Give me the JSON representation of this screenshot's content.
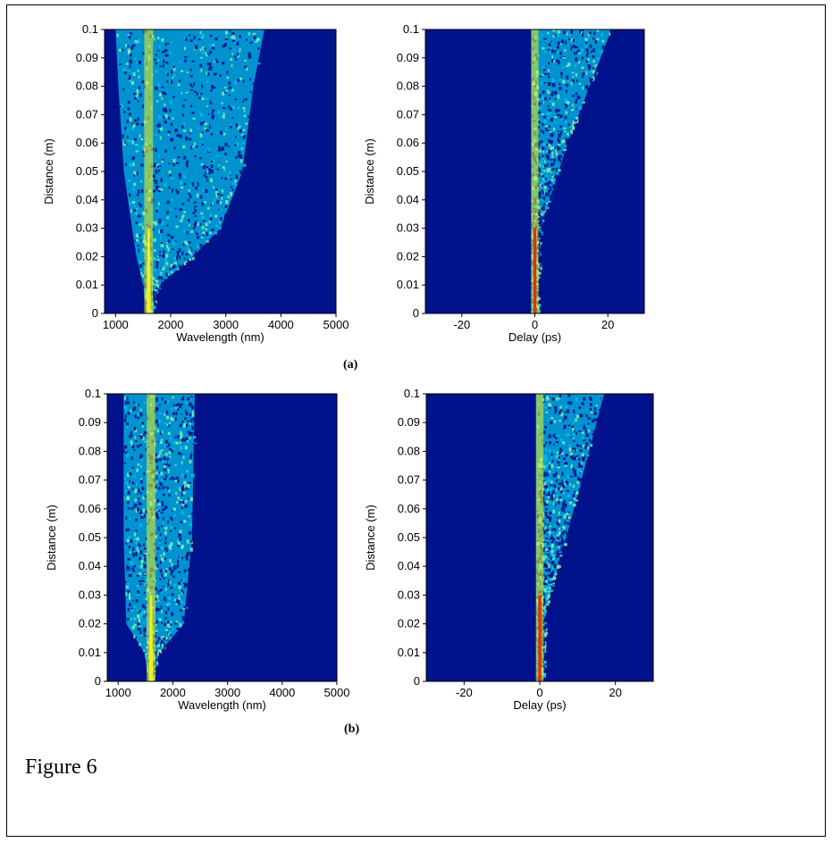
{
  "figure": {
    "caption": "Figure 6",
    "row_labels": [
      "(a)",
      "(b)"
    ]
  },
  "colors": {
    "background": "#00128c",
    "low": "#00bfe6",
    "mid": "#7af0b4",
    "high": "#f0f020",
    "peak": "#e03010"
  },
  "chart_data": [
    {
      "type": "heatmap",
      "row": "(a)",
      "xlabel": "Wavelength (nm)",
      "ylabel": "Distance (m)",
      "xlim": [
        800,
        5000
      ],
      "ylim": [
        0,
        0.1
      ],
      "xticks": [
        1000,
        2000,
        3000,
        4000,
        5000
      ],
      "yticks": [
        0,
        0.01,
        0.02,
        0.03,
        0.04,
        0.05,
        0.06,
        0.07,
        0.08,
        0.09,
        0.1
      ],
      "spectral_extent": [
        {
          "distance": 0.0,
          "min": 1560,
          "max": 1640
        },
        {
          "distance": 0.01,
          "min": 1500,
          "max": 1800
        },
        {
          "distance": 0.02,
          "min": 1380,
          "max": 2400
        },
        {
          "distance": 0.03,
          "min": 1300,
          "max": 2900
        },
        {
          "distance": 0.05,
          "min": 1150,
          "max": 3300
        },
        {
          "distance": 0.08,
          "min": 1050,
          "max": 3500
        },
        {
          "distance": 0.1,
          "min": 1000,
          "max": 3700
        }
      ]
    },
    {
      "type": "heatmap",
      "row": "(a)",
      "xlabel": "Delay (ps)",
      "ylabel": "Distance (m)",
      "xlim": [
        -30,
        30
      ],
      "ylim": [
        0,
        0.1
      ],
      "xticks": [
        -20,
        0,
        20
      ],
      "yticks": [
        0,
        0.01,
        0.02,
        0.03,
        0.04,
        0.05,
        0.06,
        0.07,
        0.08,
        0.09,
        0.1
      ],
      "temporal_extent": [
        {
          "distance": 0.0,
          "min": -1,
          "max": 1
        },
        {
          "distance": 0.03,
          "min": -1,
          "max": 1.5
        },
        {
          "distance": 0.04,
          "min": -1,
          "max": 4
        },
        {
          "distance": 0.06,
          "min": -1,
          "max": 9
        },
        {
          "distance": 0.08,
          "min": -1,
          "max": 15
        },
        {
          "distance": 0.1,
          "min": -1,
          "max": 21
        }
      ]
    },
    {
      "type": "heatmap",
      "row": "(b)",
      "xlabel": "Wavelength (nm)",
      "ylabel": "Distance (m)",
      "xlim": [
        800,
        5000
      ],
      "ylim": [
        0,
        0.1
      ],
      "xticks": [
        1000,
        2000,
        3000,
        4000,
        5000
      ],
      "yticks": [
        0,
        0.01,
        0.02,
        0.03,
        0.04,
        0.05,
        0.06,
        0.07,
        0.08,
        0.09,
        0.1
      ],
      "spectral_extent": [
        {
          "distance": 0.0,
          "min": 1560,
          "max": 1640
        },
        {
          "distance": 0.01,
          "min": 1480,
          "max": 1750
        },
        {
          "distance": 0.02,
          "min": 1150,
          "max": 2200
        },
        {
          "distance": 0.05,
          "min": 1100,
          "max": 2350
        },
        {
          "distance": 0.1,
          "min": 1100,
          "max": 2400
        }
      ]
    },
    {
      "type": "heatmap",
      "row": "(b)",
      "xlabel": "Delay (ps)",
      "ylabel": "Distance (m)",
      "xlim": [
        -30,
        30
      ],
      "ylim": [
        0,
        0.1
      ],
      "xticks": [
        -20,
        0,
        20
      ],
      "yticks": [
        0,
        0.01,
        0.02,
        0.03,
        0.04,
        0.05,
        0.06,
        0.07,
        0.08,
        0.09,
        0.1
      ],
      "temporal_extent": [
        {
          "distance": 0.0,
          "min": -1,
          "max": 1
        },
        {
          "distance": 0.025,
          "min": -1,
          "max": 1.5
        },
        {
          "distance": 0.05,
          "min": -1,
          "max": 7
        },
        {
          "distance": 0.08,
          "min": -1,
          "max": 13
        },
        {
          "distance": 0.1,
          "min": -1,
          "max": 17
        }
      ]
    }
  ]
}
